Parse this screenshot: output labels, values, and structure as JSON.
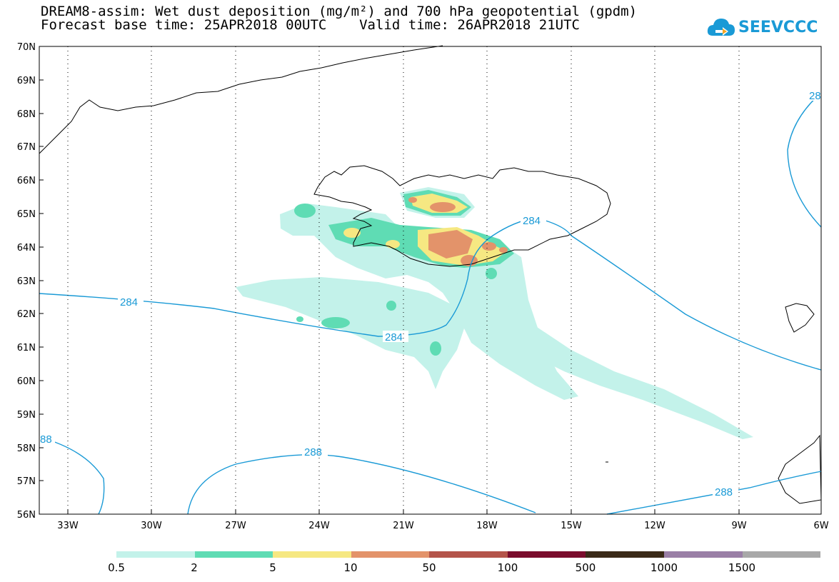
{
  "header": {
    "title_line1": "DREAM8-assim: Wet dust deposition (mg/m²) and 700 hPa geopotential (gpdm)",
    "title_line2": "Forecast base time: 25APR2018 00UTC    Valid time: 26APR2018 21UTC"
  },
  "logo": {
    "text": "SEEVCCC"
  },
  "axes": {
    "lat_labels": [
      "70N",
      "69N",
      "68N",
      "67N",
      "66N",
      "65N",
      "64N",
      "63N",
      "62N",
      "61N",
      "60N",
      "59N",
      "58N",
      "57N",
      "56N"
    ],
    "lon_labels": [
      "33W",
      "30W",
      "27W",
      "24W",
      "21W",
      "18W",
      "15W",
      "12W",
      "9W",
      "6W"
    ]
  },
  "contour_labels": {
    "c284_a": "284",
    "c284_b": "284",
    "c284_c": "284",
    "c284_d": "28",
    "c288_a": "288",
    "c288_b": "288",
    "c288_c": "88"
  },
  "colorbar": {
    "colors": [
      "#c3f2ea",
      "#5fdcb4",
      "#f6e882",
      "#e3936a",
      "#b4544a",
      "#7a0c2c",
      "#3a2a18",
      "#9a7fa6",
      "#a8a8a8"
    ],
    "labels": [
      "0.5",
      "2",
      "5",
      "10",
      "50",
      "100",
      "500",
      "1000",
      "1500"
    ]
  }
}
